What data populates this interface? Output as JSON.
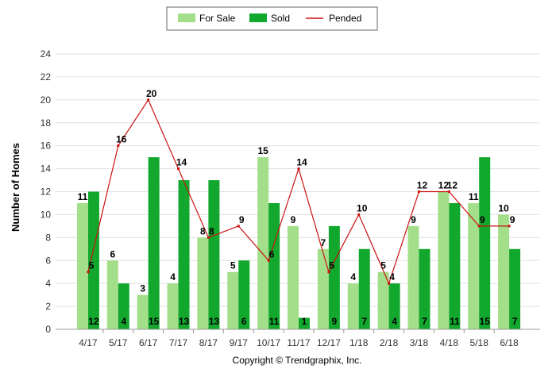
{
  "chart_data": {
    "type": "bar",
    "ylabel": "Number of Homes",
    "credit": "Copyright © Trendgraphix, Inc.",
    "ylim": [
      0,
      24
    ],
    "yticks": [
      0,
      2,
      4,
      6,
      8,
      10,
      12,
      14,
      16,
      18,
      20,
      22,
      24
    ],
    "grid": true,
    "legend_position": "top-center",
    "categories": [
      "4/17",
      "5/17",
      "6/17",
      "7/17",
      "8/17",
      "9/17",
      "10/17",
      "11/17",
      "12/17",
      "1/18",
      "2/18",
      "3/18",
      "4/18",
      "5/18",
      "6/18"
    ],
    "series": [
      {
        "name": "For Sale",
        "kind": "bar",
        "color": "#a3df8a",
        "values": [
          11,
          6,
          3,
          4,
          8,
          5,
          15,
          9,
          7,
          4,
          5,
          9,
          12,
          11,
          10
        ]
      },
      {
        "name": "Sold",
        "kind": "bar",
        "color": "#12a82e",
        "values": [
          12,
          4,
          15,
          13,
          13,
          6,
          11,
          1,
          9,
          7,
          4,
          7,
          11,
          15,
          7
        ]
      },
      {
        "name": "Pended",
        "kind": "line",
        "color": "#cc1111",
        "values": [
          5,
          16,
          20,
          14,
          8,
          9,
          6,
          14,
          5,
          10,
          4,
          12,
          12,
          9,
          9
        ]
      }
    ]
  }
}
